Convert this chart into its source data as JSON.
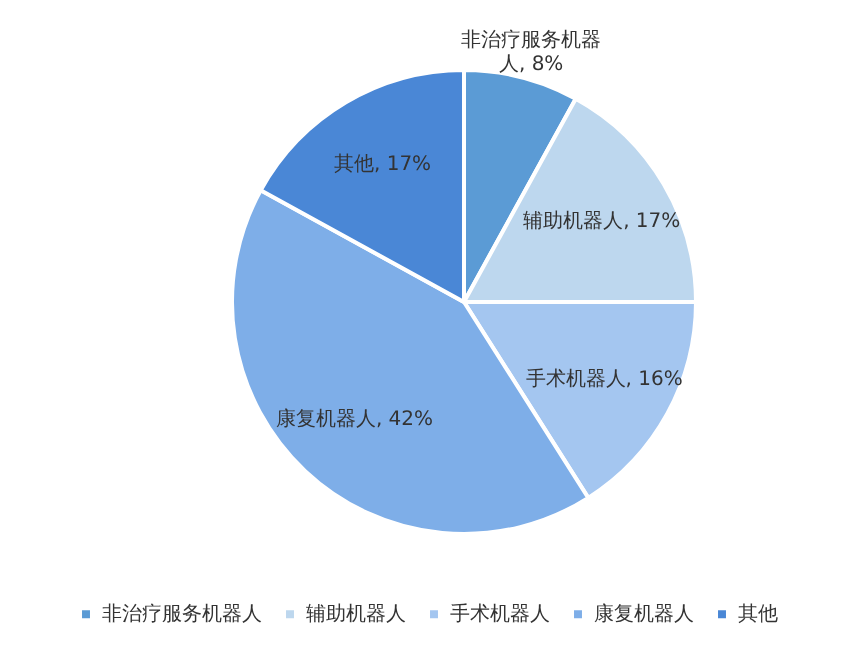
{
  "chart_data": {
    "type": "pie",
    "categories": [
      "非治疗服务机器人",
      "辅助机器人",
      "手术机器人",
      "康复机器人",
      "其他"
    ],
    "values": [
      8,
      17,
      16,
      42,
      17
    ],
    "colors": [
      "#5b9bd5",
      "#bdd7ee",
      "#a4c6f0",
      "#7eaee8",
      "#4a87d6"
    ],
    "value_labels": [
      "非治疗服务机器人, 8%",
      "辅助机器人, 17%",
      "手术机器人, 16%",
      "康复机器人, 42%",
      "其他, 17%"
    ],
    "legend": "bottom"
  }
}
